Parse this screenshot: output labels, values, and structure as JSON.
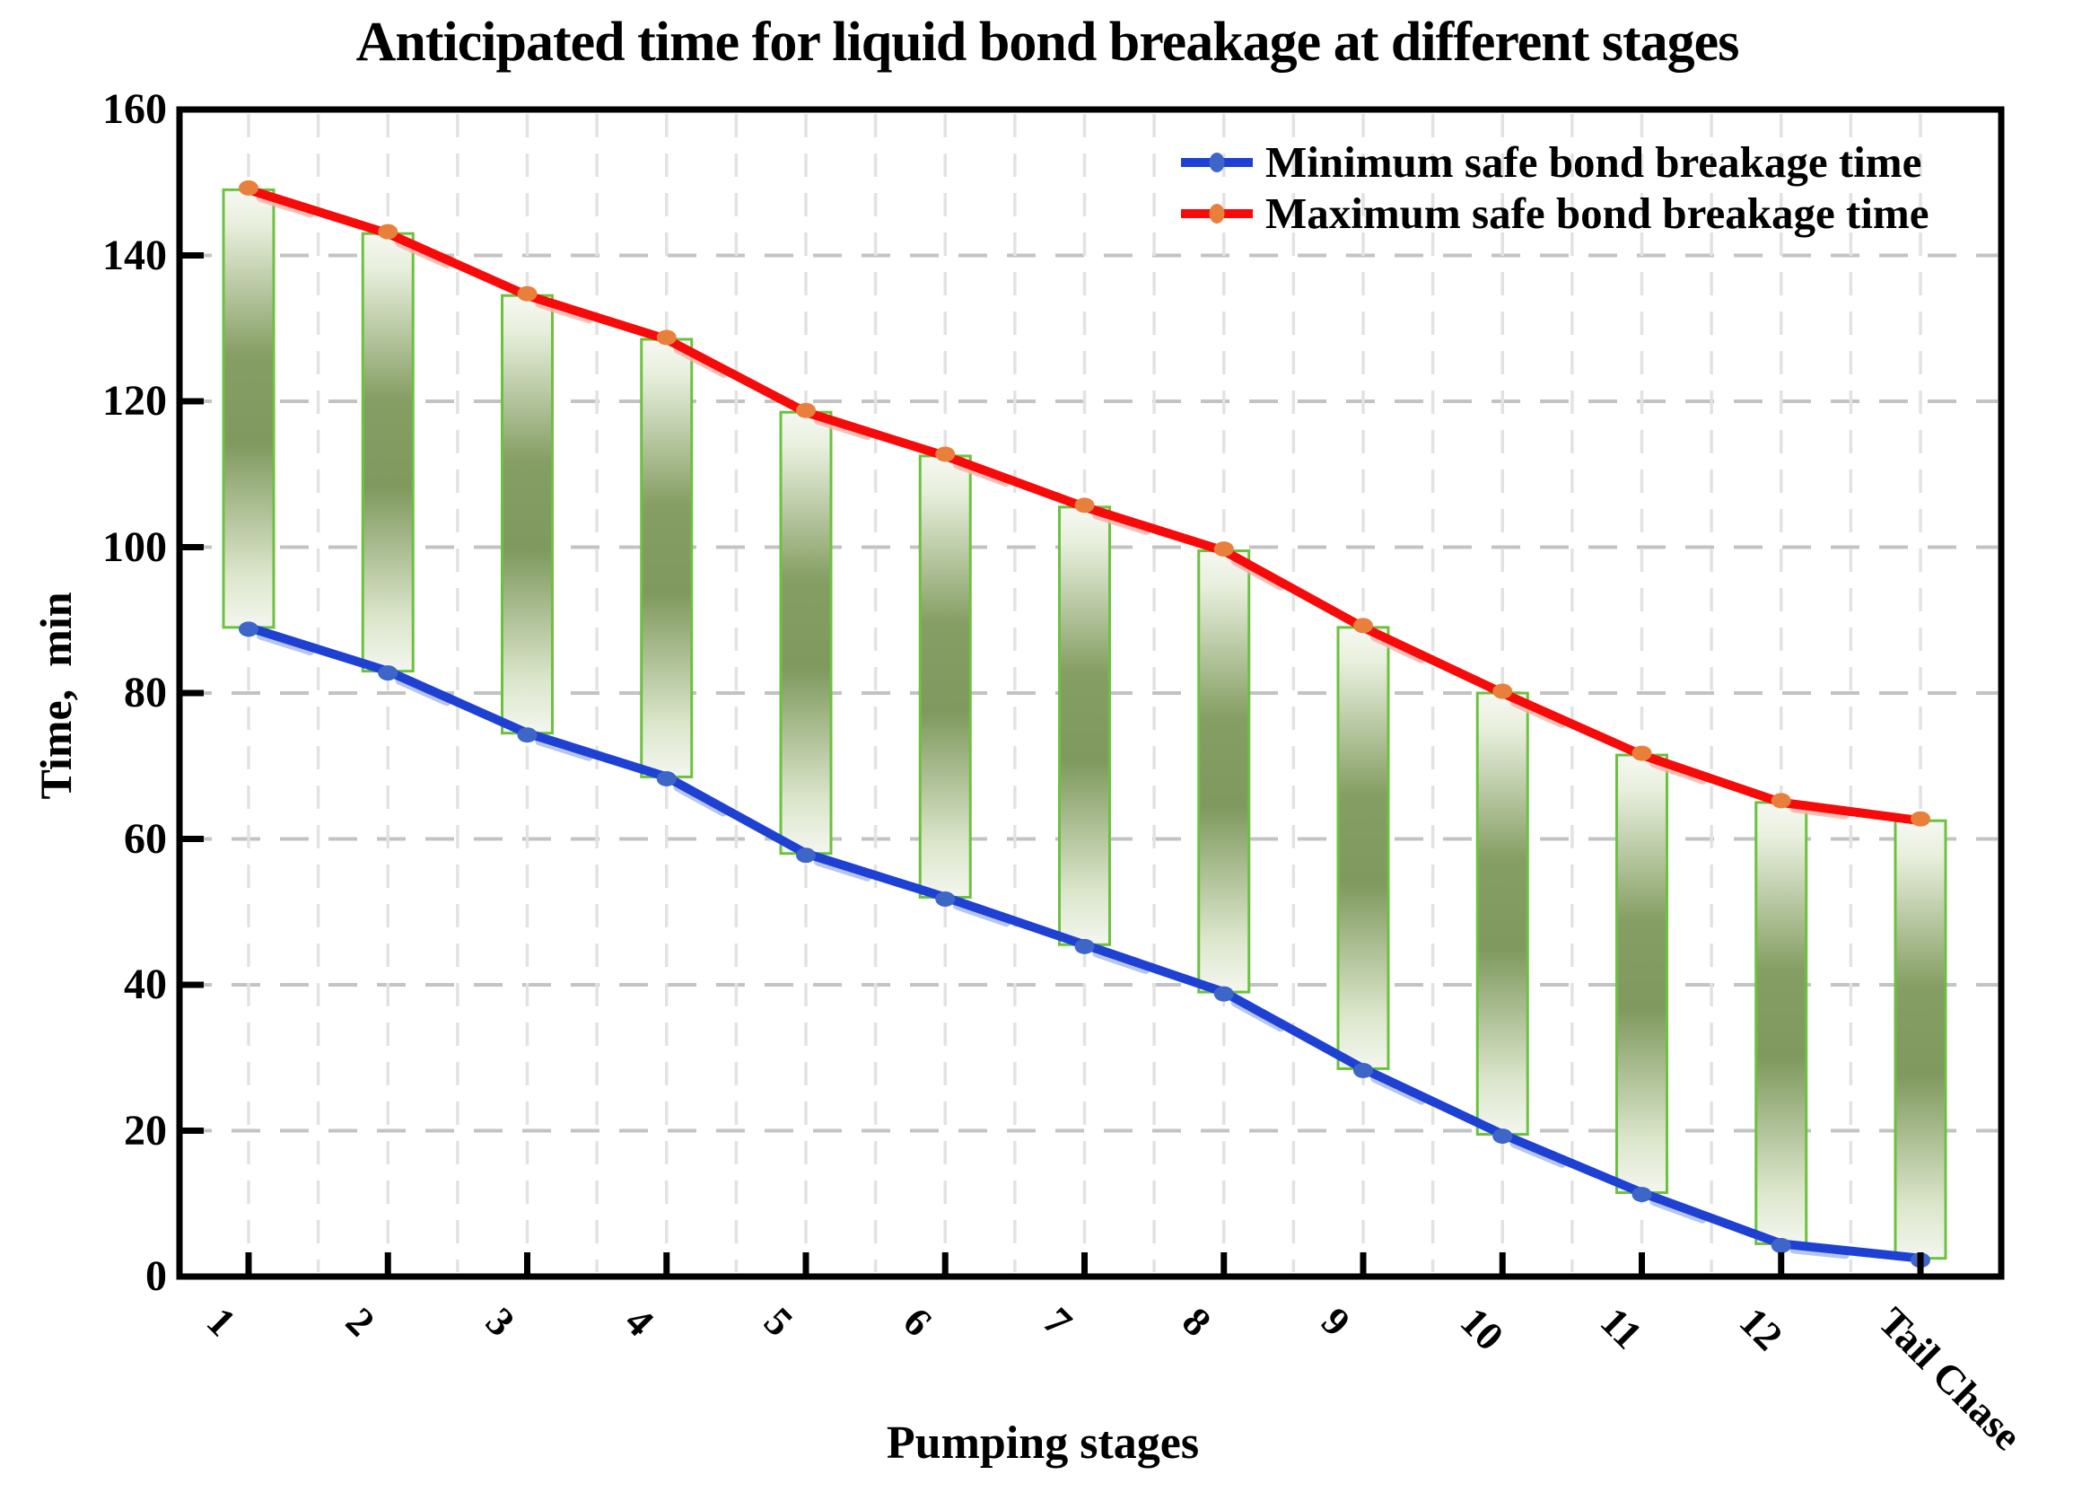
{
  "chart_data": {
    "type": "line",
    "title": "Anticipated time for liquid bond breakage at different stages",
    "xlabel": "Pumping stages",
    "ylabel": "Time,  min",
    "categories": [
      "1",
      "2",
      "3",
      "4",
      "5",
      "6",
      "7",
      "8",
      "9",
      "10",
      "11",
      "12",
      "Tail Chase"
    ],
    "ylim": [
      0,
      160
    ],
    "ytick_step": 20,
    "grid": {
      "horizontal": "dashed at each 20 min",
      "vertical": "dashed at half-stage intervals",
      "h_color": "#C3C3C3",
      "v_color": "#E2E2E2"
    },
    "legend_position": "top-right inside plot",
    "series": [
      {
        "name": "Minimum safe bond breakage time",
        "line_color": "#1E41D4",
        "marker_color": "#3E66C9",
        "glow_color": "#AABCE8",
        "values": [
          89,
          83,
          74.5,
          68.5,
          58,
          52,
          45.5,
          39,
          28.5,
          19.5,
          11.5,
          4.5,
          2.5
        ]
      },
      {
        "name": "Maximum safe bond breakage time",
        "line_color": "#F70A0A",
        "marker_color": "#E8803C",
        "glow_color": "#F6B4AC",
        "values": [
          149,
          143,
          134.5,
          128.5,
          118.5,
          112.5,
          105.5,
          99.5,
          89,
          80,
          71.5,
          65,
          62.5
        ]
      }
    ],
    "range_bars": {
      "description": "green gradient bar spanning min-to-max at each stage",
      "border_color": "#6CC13E",
      "fill_gradient": [
        [
          0,
          "#F6F8F2"
        ],
        [
          8,
          "#E8EFDD"
        ],
        [
          38,
          "#859E63"
        ],
        [
          58,
          "#7F995E"
        ],
        [
          88,
          "#DCE6CC"
        ],
        [
          100,
          "#F3F6EE"
        ]
      ]
    },
    "axis_color": "#000000"
  }
}
